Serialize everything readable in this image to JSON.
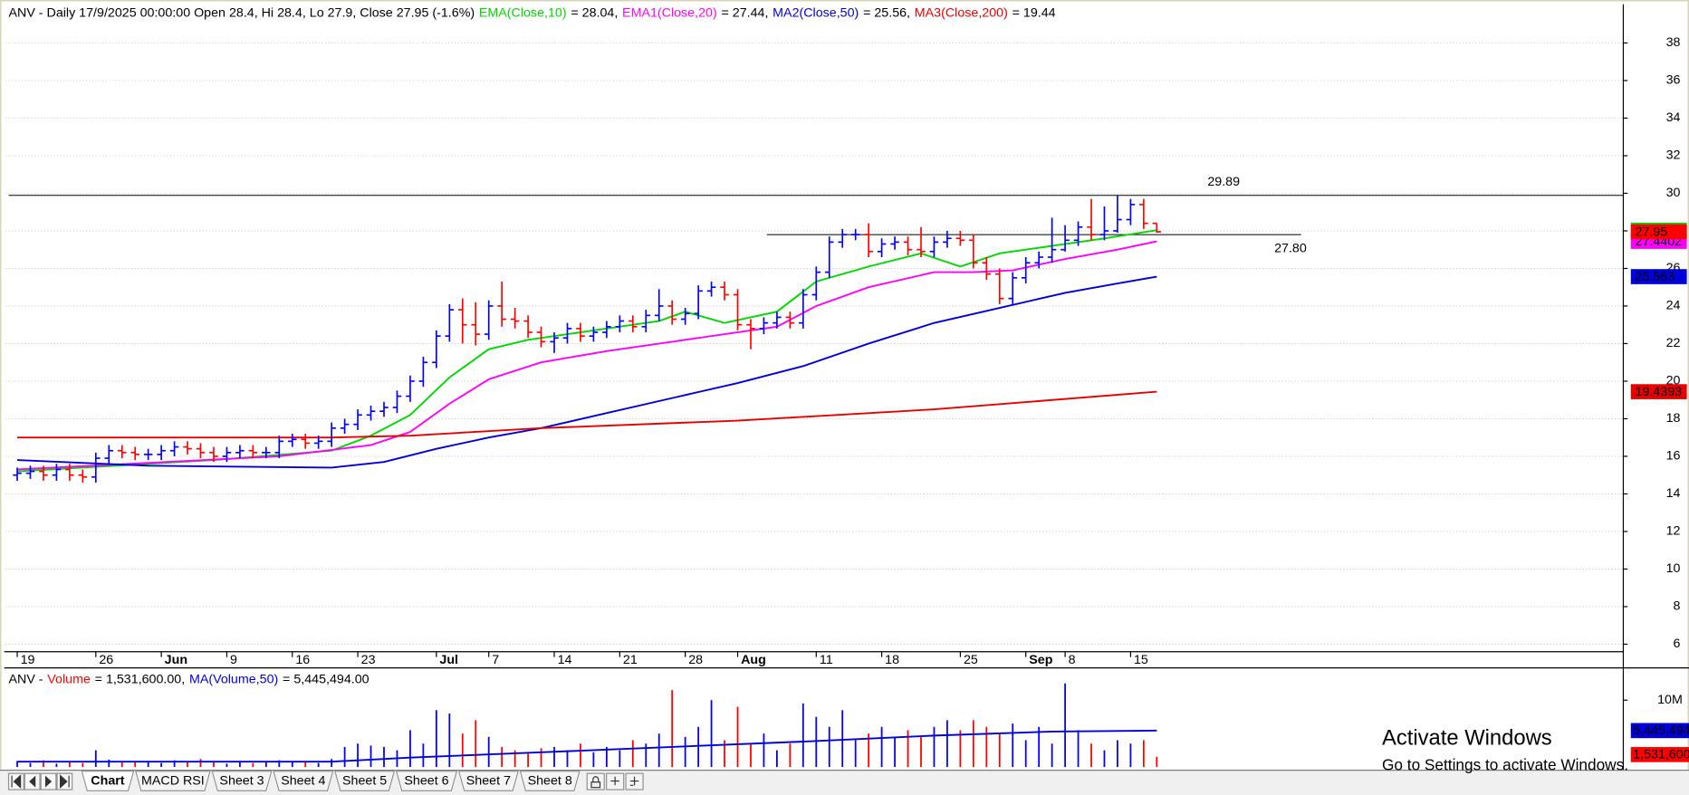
{
  "chart_data": [
    {
      "type": "ohlc",
      "title": "ANV - Daily 17/9/2025 00:00:00 Open 28.4, Hi 28.4, Lo 27.9, Close 27.95 (-1.6%)",
      "categories": [
        "19",
        null,
        null,
        null,
        null,
        null,
        "26",
        null,
        null,
        null,
        null,
        "Jun",
        null,
        null,
        null,
        null,
        "9",
        null,
        null,
        null,
        null,
        "16",
        null,
        null,
        null,
        null,
        "23",
        null,
        null,
        null,
        null,
        null,
        "Jul",
        null,
        null,
        null,
        "7",
        null,
        null,
        null,
        null,
        "14",
        null,
        null,
        null,
        null,
        "21",
        null,
        null,
        null,
        null,
        "28",
        null,
        null,
        null,
        "Aug",
        null,
        null,
        null,
        null,
        null,
        "11",
        null,
        null,
        null,
        null,
        "18",
        null,
        null,
        null,
        null,
        null,
        "25",
        null,
        null,
        null,
        null,
        "Sep",
        null,
        null,
        "8",
        null,
        null,
        null,
        null,
        "15",
        null,
        null
      ],
      "open": [
        15.0,
        15.1,
        15.2,
        15.0,
        15.3,
        15.0,
        14.9,
        15.9,
        16.3,
        16.2,
        16.1,
        16.1,
        16.3,
        16.5,
        16.4,
        16.2,
        16.0,
        16.2,
        16.3,
        16.2,
        16.2,
        16.8,
        16.9,
        16.7,
        16.8,
        17.5,
        17.7,
        18.2,
        18.4,
        18.6,
        19.2,
        20.0,
        21.0,
        22.4,
        23.8,
        23.0,
        22.5,
        24.0,
        23.3,
        23.2,
        22.6,
        22.1,
        22.3,
        22.8,
        22.4,
        22.6,
        22.9,
        23.2,
        22.9,
        23.5,
        24.0,
        23.3,
        23.6,
        24.8,
        25.0,
        24.6,
        23.0,
        22.8,
        23.1,
        23.4,
        23.1,
        24.6,
        25.8,
        27.4,
        27.8,
        27.8,
        26.9,
        27.3,
        27.4,
        27.0,
        26.9,
        27.4,
        27.6,
        27.5,
        26.3,
        25.7,
        24.4,
        25.5,
        26.3,
        26.6,
        27.0,
        27.5,
        28.2,
        27.8,
        28.0,
        28.6,
        29.4,
        28.4
      ],
      "high": [
        15.4,
        15.5,
        15.5,
        15.6,
        15.6,
        15.3,
        16.2,
        16.6,
        16.6,
        16.5,
        16.4,
        16.6,
        16.8,
        16.8,
        16.7,
        16.5,
        16.5,
        16.6,
        16.6,
        16.5,
        17.1,
        17.2,
        17.2,
        17.1,
        17.8,
        18.0,
        18.5,
        18.7,
        18.9,
        19.5,
        20.3,
        21.3,
        22.7,
        24.1,
        24.4,
        24.2,
        24.3,
        25.3,
        23.9,
        23.5,
        22.9,
        22.6,
        23.1,
        23.1,
        22.9,
        23.2,
        23.5,
        23.5,
        23.8,
        24.9,
        24.3,
        23.9,
        25.1,
        25.3,
        25.3,
        24.9,
        23.3,
        23.4,
        23.7,
        23.7,
        24.9,
        26.1,
        27.7,
        28.1,
        28.1,
        28.4,
        27.6,
        27.7,
        27.7,
        28.2,
        27.7,
        28.0,
        28.0,
        27.8,
        26.6,
        26.0,
        25.8,
        26.6,
        26.9,
        28.7,
        28.3,
        28.5,
        29.7,
        29.3,
        29.89,
        29.7,
        29.7,
        28.4
      ],
      "low": [
        14.7,
        14.8,
        14.7,
        14.7,
        14.7,
        14.6,
        14.6,
        15.6,
        15.9,
        15.8,
        15.8,
        15.8,
        16.0,
        16.1,
        15.9,
        15.7,
        15.7,
        15.9,
        15.9,
        15.9,
        15.9,
        16.5,
        16.4,
        16.4,
        16.5,
        17.2,
        17.4,
        17.9,
        18.1,
        18.3,
        18.9,
        19.7,
        20.7,
        22.1,
        22.0,
        21.9,
        22.2,
        22.9,
        22.8,
        22.3,
        21.8,
        21.5,
        22.0,
        22.1,
        22.1,
        22.3,
        22.6,
        22.6,
        22.6,
        23.2,
        23.0,
        23.0,
        23.3,
        24.5,
        24.3,
        22.7,
        21.7,
        22.5,
        22.8,
        22.8,
        22.8,
        24.3,
        25.5,
        27.1,
        27.5,
        26.6,
        26.6,
        27.0,
        26.7,
        26.6,
        26.6,
        27.1,
        27.2,
        26.0,
        25.4,
        24.1,
        24.1,
        25.2,
        26.0,
        26.3,
        26.9,
        27.2,
        27.5,
        27.5,
        27.9,
        28.3,
        28.1,
        27.9
      ],
      "close": [
        15.1,
        15.2,
        15.0,
        15.3,
        15.0,
        14.9,
        15.9,
        16.3,
        16.2,
        16.1,
        16.1,
        16.3,
        16.5,
        16.4,
        16.2,
        16.0,
        16.2,
        16.3,
        16.2,
        16.2,
        16.8,
        16.9,
        16.7,
        16.8,
        17.5,
        17.7,
        18.2,
        18.4,
        18.6,
        19.2,
        20.0,
        21.0,
        22.4,
        23.8,
        23.0,
        22.5,
        24.0,
        23.3,
        23.2,
        22.6,
        22.1,
        22.3,
        22.8,
        22.4,
        22.6,
        22.9,
        23.2,
        22.9,
        23.5,
        24.0,
        23.3,
        23.6,
        24.8,
        25.0,
        24.6,
        23.0,
        22.8,
        23.1,
        23.4,
        23.1,
        24.6,
        25.8,
        27.4,
        27.8,
        27.8,
        26.9,
        27.3,
        27.4,
        27.0,
        26.9,
        27.4,
        27.6,
        27.5,
        26.3,
        25.7,
        24.4,
        25.5,
        26.3,
        26.6,
        27.0,
        27.5,
        28.2,
        27.8,
        28.0,
        28.6,
        29.4,
        28.4,
        27.95
      ],
      "close_label": "27.95",
      "up_color": "#0000ff",
      "down_color": "#ff0000",
      "close_label_color": "#ff0000",
      "series": [
        {
          "name": "EMA(Close,10)",
          "color": "#00d800",
          "legend_value": "= 28.04,",
          "last_label": "28.0363",
          "x": [
            0,
            15,
            24,
            27,
            30,
            33,
            36,
            39,
            45,
            49,
            51,
            54,
            58,
            61,
            65,
            69,
            72,
            75,
            79,
            83,
            87
          ],
          "values": [
            15.2,
            15.8,
            16.3,
            17.1,
            18.2,
            20.2,
            21.7,
            22.2,
            22.8,
            23.2,
            23.7,
            23.1,
            23.7,
            25.3,
            26.1,
            26.8,
            26.1,
            26.8,
            27.2,
            27.6,
            28.0363
          ]
        },
        {
          "name": "EMA1(Close,20)",
          "color": "#ff00ff",
          "legend_value": "= 27.44,",
          "last_label": "27.4402",
          "x": [
            0,
            20,
            27,
            30,
            33,
            36,
            40,
            45,
            50,
            54,
            58,
            61,
            65,
            70,
            73,
            76,
            80,
            84,
            87
          ],
          "values": [
            15.3,
            16.0,
            16.6,
            17.3,
            18.8,
            20.1,
            21.0,
            21.6,
            22.1,
            22.5,
            22.9,
            24.0,
            25.0,
            25.8,
            25.8,
            25.9,
            26.5,
            27.0,
            27.4402
          ]
        },
        {
          "name": "MA2(Close,50)",
          "color": "#0000d8",
          "legend_value": "= 25.56,",
          "last_label": "25.563",
          "x": [
            0,
            10,
            24,
            28,
            32,
            36,
            40,
            45,
            50,
            55,
            60,
            65,
            70,
            75,
            80,
            84,
            87
          ],
          "values": [
            15.8,
            15.5,
            15.4,
            15.7,
            16.4,
            17.0,
            17.5,
            18.3,
            19.1,
            19.9,
            20.8,
            22.0,
            23.1,
            23.9,
            24.7,
            25.2,
            25.563
          ]
        },
        {
          "name": "MA3(Close,200)",
          "color": "#e80000",
          "legend_value": "= 19.44",
          "last_label": "19.4393",
          "x": [
            0,
            24,
            30,
            40,
            55,
            70,
            87
          ],
          "values": [
            17.0,
            17.0,
            17.1,
            17.5,
            17.9,
            18.5,
            19.4393
          ]
        }
      ],
      "hlines": [
        {
          "value": 29.89,
          "label": "29.89"
        },
        {
          "value": 27.8,
          "label": "27.80"
        }
      ],
      "ylim": [
        5.6,
        40
      ],
      "yticks": [
        6,
        8,
        10,
        12,
        14,
        16,
        18,
        20,
        22,
        24,
        26,
        28,
        30,
        32,
        34,
        36,
        38
      ],
      "grid": true
    },
    {
      "type": "bar",
      "title": "ANV -",
      "name": "Volume",
      "legend_value": "= 1,531,600.00,",
      "last_label": "1,531,600",
      "values": [
        900000,
        600000,
        1000000,
        500000,
        700000,
        600000,
        2500000,
        1100000,
        800000,
        700000,
        900000,
        600000,
        1000000,
        800000,
        1200000,
        700000,
        500000,
        900000,
        600000,
        800000,
        1000000,
        700000,
        900000,
        600000,
        1200000,
        3000000,
        3500000,
        3200000,
        3000000,
        2500000,
        5500000,
        3500000,
        8500000,
        8000000,
        5000000,
        7000000,
        4500000,
        3000000,
        2500000,
        2000000,
        2800000,
        3000000,
        2500000,
        3500000,
        2200000,
        3000000,
        2500000,
        4000000,
        3500000,
        5000000,
        11500000,
        4500000,
        6000000,
        10000000,
        4000000,
        9000000,
        3500000,
        5000000,
        2500000,
        3500000,
        9500000,
        7500000,
        6000000,
        8500000,
        4000000,
        5000000,
        6000000,
        4500000,
        5500000,
        4500000,
        6000000,
        7000000,
        5500000,
        7000000,
        6000000,
        5000000,
        6500000,
        4000000,
        6000000,
        3500000,
        12500000,
        5500000,
        3500000,
        2500000,
        4000000,
        3500000,
        4000000,
        1531600
      ],
      "name_color": "#ff0000",
      "ma": {
        "name": "MA(Volume,50)",
        "color": "#0000d8",
        "legend_value": "= 5,445,494.00",
        "last_label": "5,445,494",
        "x": [
          0,
          24,
          30,
          40,
          50,
          60,
          70,
          79,
          87
        ],
        "values": [
          800000,
          800000,
          1400000,
          2200000,
          3000000,
          3800000,
          4700000,
          5300000,
          5445494
        ]
      },
      "ylim": [
        0,
        14500000
      ],
      "yticks": [
        {
          "value": 10000000,
          "label": "10M"
        }
      ]
    }
  ],
  "tabs": [
    "Chart",
    "MACD RSI",
    "Sheet 3",
    "Sheet 4",
    "Sheet 5",
    "Sheet 6",
    "Sheet 7",
    "Sheet 8"
  ],
  "watermark": {
    "title": "Activate Windows",
    "subtitle": "Go to Settings to activate Windows."
  }
}
